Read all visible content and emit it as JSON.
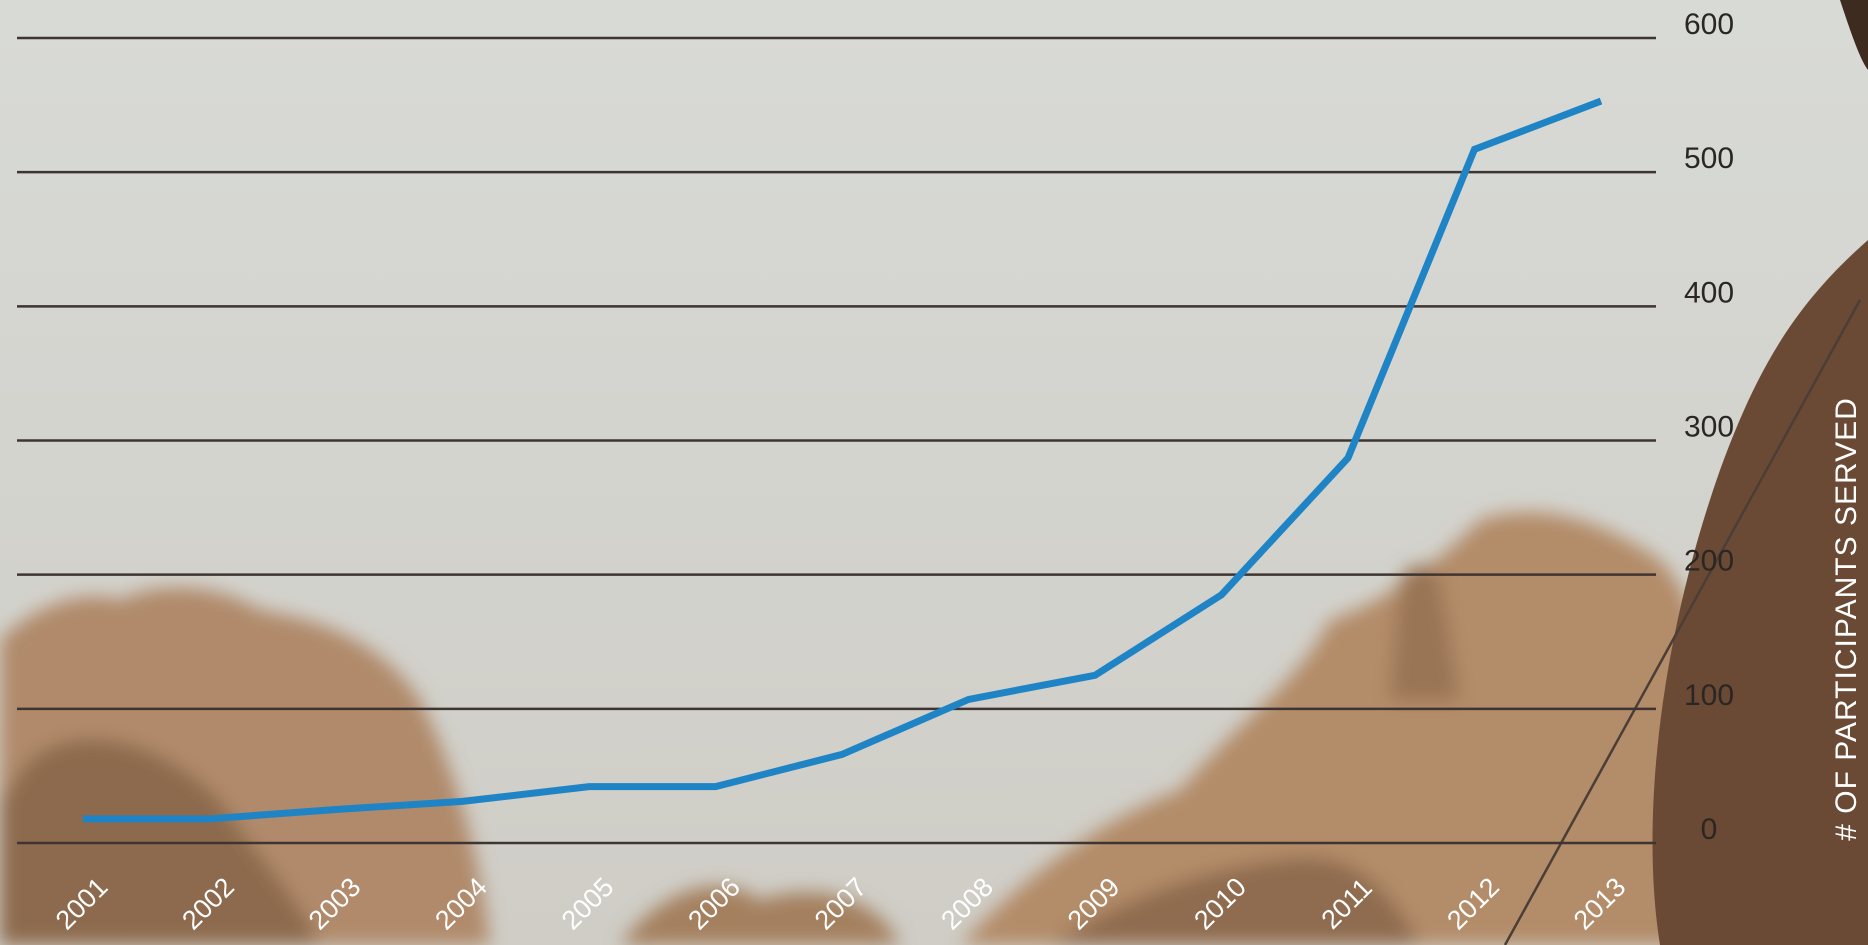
{
  "chart_data": {
    "type": "line",
    "categories": [
      "2001",
      "2002",
      "2003",
      "2004",
      "2005",
      "2006",
      "2007",
      "2008",
      "2009",
      "2010",
      "2011",
      "2012",
      "2013"
    ],
    "series": [
      {
        "name": "Participants served",
        "color": "#1f84c6",
        "values": [
          18,
          18,
          25,
          31,
          42,
          42,
          66,
          107,
          125,
          185,
          287,
          517,
          553
        ]
      }
    ],
    "y_axis_label": "# OF PARTICIPANTS SERVED",
    "ylim": [
      0,
      600
    ],
    "yticks": [
      0,
      100,
      200,
      300,
      400,
      500,
      600
    ],
    "grid": true,
    "y_axis_side": "right"
  }
}
